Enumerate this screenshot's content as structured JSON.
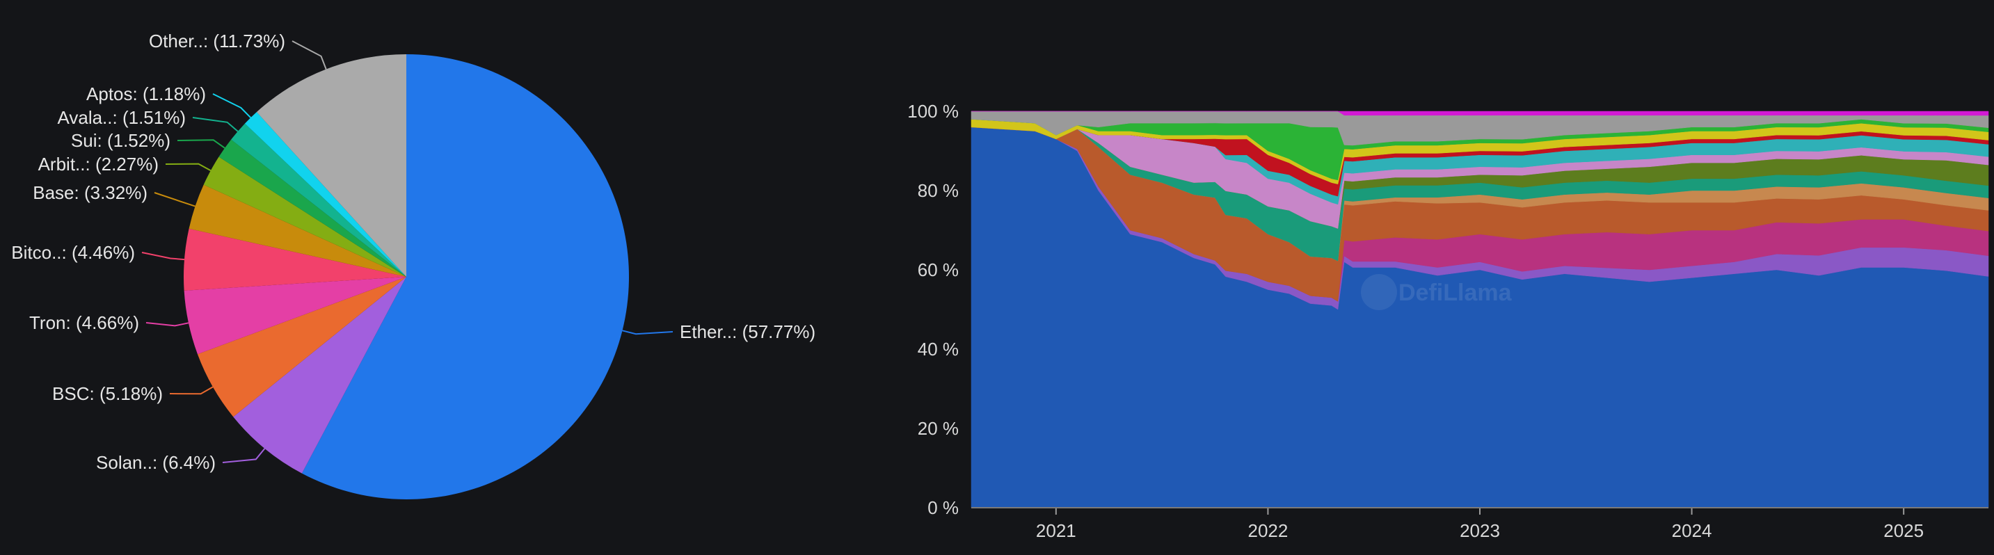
{
  "chart_data": [
    {
      "type": "pie",
      "slices": [
        {
          "name": "Ether..",
          "label": "Ether..: (57.77%)",
          "value": 57.77,
          "color": "#2277ea"
        },
        {
          "name": "Solan..",
          "label": "Solan..: (6.4%)",
          "value": 6.4,
          "color": "#a25fdd"
        },
        {
          "name": "BSC",
          "label": "BSC: (5.18%)",
          "value": 5.18,
          "color": "#ea6a2f"
        },
        {
          "name": "Tron",
          "label": "Tron: (4.66%)",
          "value": 4.66,
          "color": "#e43fa5"
        },
        {
          "name": "Bitco..",
          "label": "Bitco..: (4.46%)",
          "value": 4.46,
          "color": "#f2416b"
        },
        {
          "name": "Base",
          "label": "Base: (3.32%)",
          "value": 3.32,
          "color": "#c88b0c"
        },
        {
          "name": "Arbit..",
          "label": "Arbit..: (2.27%)",
          "value": 2.27,
          "color": "#84ad13"
        },
        {
          "name": "Sui",
          "label": "Sui: (1.52%)",
          "value": 1.52,
          "color": "#1aa64c"
        },
        {
          "name": "Avala..",
          "label": "Avala..: (1.51%)",
          "value": 1.51,
          "color": "#13b38f"
        },
        {
          "name": "Aptos",
          "label": "Aptos: (1.18%)",
          "value": 1.18,
          "color": "#11d3ee"
        },
        {
          "name": "Other..",
          "label": "Other..: (11.73%)",
          "value": 11.73,
          "color": "#aaaaaa"
        }
      ]
    },
    {
      "type": "area",
      "stacked": true,
      "normalized": true,
      "x_ticks": [
        "2021",
        "2022",
        "2023",
        "2024",
        "2025"
      ],
      "y_ticks": [
        "0 %",
        "20 %",
        "40 %",
        "60 %",
        "80 %",
        "100 %"
      ],
      "ylim": [
        0,
        100
      ],
      "x": [
        2020.6,
        2020.9,
        2021.0,
        2021.1,
        2021.2,
        2021.35,
        2021.5,
        2021.65,
        2021.75,
        2021.8,
        2021.9,
        2022.0,
        2022.1,
        2022.2,
        2022.3,
        2022.33,
        2022.36,
        2022.4,
        2022.6,
        2022.8,
        2023.0,
        2023.2,
        2023.4,
        2023.6,
        2023.8,
        2024.0,
        2024.2,
        2024.4,
        2024.6,
        2024.8,
        2025.0,
        2025.2,
        2025.4
      ],
      "series": [
        {
          "color": "#2059b4",
          "values": [
            96,
            95,
            93,
            90,
            80,
            69,
            67,
            63,
            62,
            58,
            57,
            55,
            54,
            52,
            51,
            49,
            62,
            60,
            60,
            58,
            60,
            57,
            59,
            58,
            57,
            58,
            59,
            60,
            58,
            60,
            60,
            58,
            56
          ]
        },
        {
          "color": "#8a58c6",
          "values": [
            0,
            0,
            0,
            0.5,
            1,
            1,
            1,
            1,
            1,
            1.5,
            2,
            2,
            2,
            2,
            2,
            2,
            1.5,
            1.5,
            1.5,
            2,
            2,
            2,
            2,
            2.5,
            3,
            3,
            3,
            4,
            5,
            5,
            5,
            5,
            5
          ]
        },
        {
          "color": "#b8327f",
          "values": [
            0,
            0,
            0,
            0,
            0,
            0,
            0,
            0,
            0,
            0,
            0,
            0,
            0,
            0,
            0,
            0,
            4,
            5,
            6,
            7,
            7,
            8,
            8,
            9,
            9,
            9,
            8,
            8,
            8,
            7,
            7,
            6,
            6
          ]
        },
        {
          "color": "#b95a2c",
          "values": [
            0,
            0,
            0,
            5,
            10,
            14,
            14,
            15,
            16,
            14,
            14,
            12,
            11,
            10,
            10,
            10,
            9,
            9,
            9,
            9,
            8,
            8,
            8,
            8,
            8,
            7,
            7,
            6,
            6,
            6,
            5,
            5,
            5
          ]
        },
        {
          "color": "#c7884f",
          "values": [
            0,
            0,
            0,
            0,
            0,
            0,
            0,
            0,
            0,
            0,
            0,
            0,
            0,
            0,
            0,
            0,
            1,
            1,
            1,
            1.5,
            2,
            2,
            2,
            2,
            2,
            3,
            3,
            3,
            3,
            3,
            3,
            3,
            3
          ]
        },
        {
          "color": "#1a9b7a",
          "values": [
            0,
            0,
            0,
            0,
            1,
            2,
            2,
            3,
            4,
            6,
            6,
            7,
            8,
            9,
            8,
            8,
            3,
            3,
            3,
            3,
            3,
            3,
            3,
            3,
            3,
            3,
            3,
            3,
            3,
            3,
            3,
            3,
            3
          ]
        },
        {
          "color": "#5d7d1e",
          "values": [
            0,
            0,
            0,
            0,
            0,
            0,
            0,
            0,
            0,
            0,
            0,
            0,
            0,
            0,
            0,
            0,
            2,
            2,
            2,
            2,
            2,
            3,
            3,
            3,
            4,
            4,
            4,
            4,
            4,
            4,
            4,
            5,
            5
          ]
        },
        {
          "color": "#c786c8",
          "values": [
            0,
            0,
            0,
            0,
            2,
            8,
            9,
            10,
            9,
            8,
            8,
            7,
            7,
            7,
            6,
            6,
            2,
            2,
            2,
            2,
            2,
            2,
            2,
            2,
            2,
            2,
            2,
            2,
            2,
            2,
            2,
            2,
            2
          ]
        },
        {
          "color": "#2fb0b7",
          "values": [
            0,
            0,
            0,
            0,
            0,
            0,
            0,
            0,
            0,
            1,
            2,
            2,
            2,
            2,
            2,
            2,
            3,
            3,
            3,
            3,
            3,
            3,
            3,
            3,
            3,
            3,
            3,
            3,
            3,
            3,
            3,
            3,
            3
          ]
        },
        {
          "color": "#c1121f",
          "values": [
            0,
            0,
            0,
            0,
            0,
            0,
            0,
            1,
            2,
            4,
            4,
            4,
            3,
            3,
            3,
            3,
            1,
            1,
            1,
            1,
            1,
            1,
            1,
            1,
            1,
            1,
            1,
            1,
            1,
            1,
            1,
            1,
            1
          ]
        },
        {
          "color": "#d2c51a",
          "values": [
            2,
            2,
            1,
            1,
            1,
            1,
            1,
            1,
            1,
            1,
            1,
            1,
            1,
            1,
            1,
            1,
            2,
            2,
            2,
            2,
            2,
            2,
            2,
            2,
            2,
            2,
            2,
            2,
            2,
            2,
            2,
            2,
            2
          ]
        },
        {
          "color": "#2bb336",
          "values": [
            0,
            0,
            0,
            0,
            1,
            2,
            3,
            3,
            3,
            3,
            3,
            7,
            9,
            11,
            13,
            13,
            1,
            1,
            1,
            1,
            1,
            1,
            1,
            1,
            1,
            1,
            1,
            1,
            1,
            1,
            1,
            1,
            1
          ]
        },
        {
          "color": "#9a9a9a",
          "values": [
            2,
            3,
            6,
            3.5,
            4,
            3,
            3,
            3,
            3,
            3,
            3,
            3,
            3,
            4,
            4,
            4,
            7.5,
            7.5,
            6.5,
            6.5,
            6,
            6,
            5,
            4.5,
            4,
            3,
            3,
            2,
            2,
            1,
            2,
            2,
            3
          ]
        },
        {
          "color": "#d21ad4",
          "values": [
            0,
            0,
            0,
            0,
            0,
            0,
            0,
            0,
            0,
            0,
            0,
            0,
            0,
            0,
            0,
            0,
            1,
            1,
            1,
            1,
            1,
            1,
            1,
            1,
            1,
            1,
            1,
            1,
            1,
            1,
            1,
            1,
            1
          ]
        }
      ],
      "watermark": "DefiLlama"
    }
  ]
}
